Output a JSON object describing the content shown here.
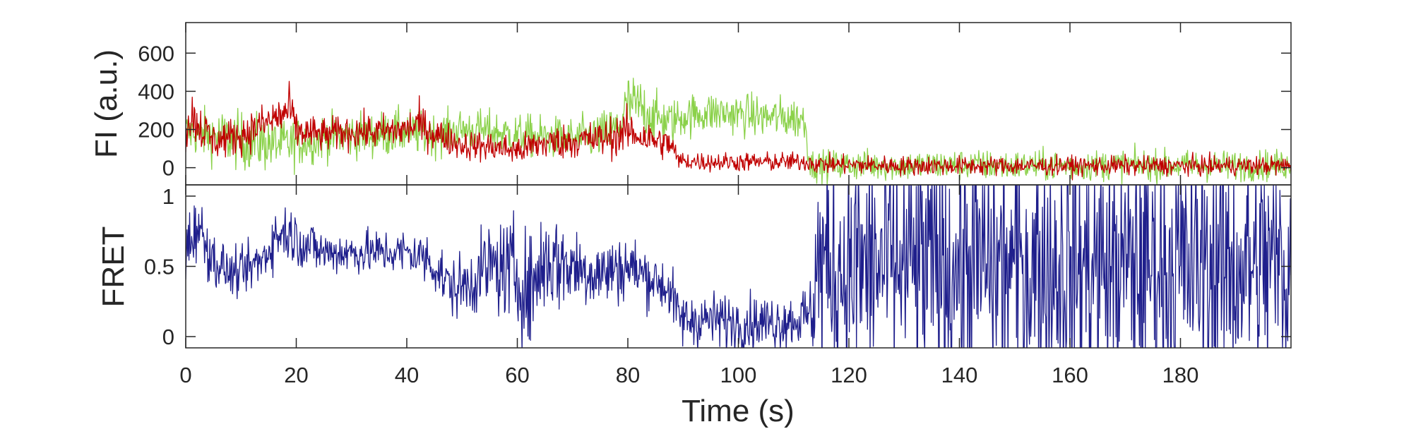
{
  "chart_data": [
    {
      "type": "line",
      "panel": "top",
      "ylabel": "FI (a.u.)",
      "xlabel": "",
      "xlim": [
        0,
        200
      ],
      "ylim": [
        -90,
        760
      ],
      "yticks": [
        0,
        200,
        400,
        600
      ],
      "ytick_labels": [
        "0",
        "200",
        "400",
        "600"
      ],
      "grid": false,
      "series": [
        {
          "color": "#8bd14a",
          "x": [
            0,
            5,
            10,
            15,
            18,
            20,
            25,
            30,
            35,
            40,
            45,
            50,
            55,
            60,
            65,
            70,
            75,
            78,
            80,
            82,
            85,
            88,
            90,
            95,
            100,
            105,
            110,
            112,
            113,
            115,
            120,
            130,
            140,
            150,
            160,
            170,
            180,
            190,
            200
          ],
          "values": [
            190,
            170,
            140,
            130,
            120,
            130,
            160,
            170,
            175,
            190,
            170,
            200,
            190,
            170,
            160,
            150,
            170,
            200,
            330,
            320,
            260,
            240,
            270,
            290,
            280,
            265,
            260,
            250,
            15,
            10,
            15,
            10,
            15,
            10,
            10,
            15,
            10,
            10,
            15
          ],
          "noise": [
            60,
            70,
            75,
            75,
            70,
            65,
            60,
            60,
            60,
            60,
            55,
            55,
            55,
            55,
            55,
            55,
            60,
            70,
            80,
            80,
            65,
            60,
            55,
            55,
            55,
            55,
            55,
            55,
            40,
            40,
            40,
            40,
            40,
            40,
            40,
            40,
            40,
            40,
            40
          ]
        },
        {
          "color": "#c00000",
          "x": [
            0,
            1,
            3,
            5,
            10,
            15,
            17,
            19,
            20,
            25,
            30,
            35,
            40,
            42,
            45,
            50,
            55,
            60,
            65,
            70,
            75,
            78,
            80,
            85,
            88,
            89,
            90,
            95,
            100,
            105,
            110,
            113,
            114,
            115,
            120,
            130,
            140,
            150,
            160,
            170,
            180,
            190,
            200
          ],
          "values": [
            180,
            280,
            200,
            140,
            170,
            240,
            270,
            300,
            190,
            170,
            190,
            185,
            200,
            230,
            180,
            120,
            110,
            90,
            130,
            140,
            150,
            170,
            190,
            140,
            120,
            40,
            35,
            30,
            30,
            30,
            30,
            30,
            20,
            20,
            15,
            10,
            10,
            10,
            10,
            10,
            10,
            10,
            10
          ],
          "noise": [
            55,
            70,
            60,
            50,
            50,
            55,
            60,
            65,
            50,
            45,
            45,
            45,
            50,
            55,
            45,
            40,
            40,
            40,
            45,
            45,
            50,
            55,
            55,
            45,
            40,
            25,
            25,
            25,
            25,
            25,
            25,
            25,
            25,
            25,
            25,
            25,
            25,
            25,
            25,
            25,
            25,
            25,
            25
          ]
        }
      ]
    },
    {
      "type": "line",
      "panel": "bottom",
      "ylabel": "FRET",
      "xlabel": "Time (s)",
      "xlim": [
        0,
        200
      ],
      "ylim": [
        -0.08,
        1.08
      ],
      "xticks": [
        0,
        20,
        40,
        60,
        80,
        100,
        120,
        140,
        160,
        180
      ],
      "xtick_labels": [
        "0",
        "20",
        "40",
        "60",
        "80",
        "100",
        "120",
        "140",
        "160",
        "180"
      ],
      "yticks": [
        0,
        0.5,
        1
      ],
      "ytick_labels": [
        "0",
        "0.5",
        "1"
      ],
      "grid": false,
      "series": [
        {
          "color": "#1f1f8c",
          "x": [
            0,
            2,
            5,
            8,
            10,
            14,
            16,
            18,
            20,
            22,
            25,
            30,
            35,
            40,
            44,
            46,
            48,
            50,
            55,
            60,
            62,
            65,
            70,
            75,
            80,
            85,
            87,
            88,
            89,
            90,
            95,
            100,
            105,
            110,
            113,
            114,
            115,
            120,
            130,
            140,
            150,
            160,
            170,
            180,
            190,
            200
          ],
          "values": [
            0.6,
            0.8,
            0.55,
            0.45,
            0.45,
            0.55,
            0.7,
            0.75,
            0.7,
            0.65,
            0.6,
            0.6,
            0.6,
            0.6,
            0.55,
            0.45,
            0.35,
            0.35,
            0.5,
            0.45,
            0.3,
            0.55,
            0.5,
            0.45,
            0.5,
            0.4,
            0.35,
            0.3,
            0.15,
            0.12,
            0.12,
            0.1,
            0.1,
            0.12,
            0.15,
            0.5,
            0.5,
            0.5,
            0.5,
            0.5,
            0.5,
            0.5,
            0.5,
            0.5,
            0.5,
            0.5
          ],
          "noise": [
            0.12,
            0.12,
            0.1,
            0.08,
            0.08,
            0.1,
            0.1,
            0.1,
            0.1,
            0.1,
            0.08,
            0.08,
            0.08,
            0.08,
            0.1,
            0.1,
            0.1,
            0.12,
            0.15,
            0.2,
            0.2,
            0.2,
            0.15,
            0.13,
            0.12,
            0.1,
            0.1,
            0.1,
            0.1,
            0.1,
            0.1,
            0.1,
            0.1,
            0.1,
            0.12,
            0.45,
            0.45,
            0.45,
            0.45,
            0.45,
            0.45,
            0.45,
            0.45,
            0.45,
            0.45,
            0.45
          ]
        }
      ]
    }
  ]
}
